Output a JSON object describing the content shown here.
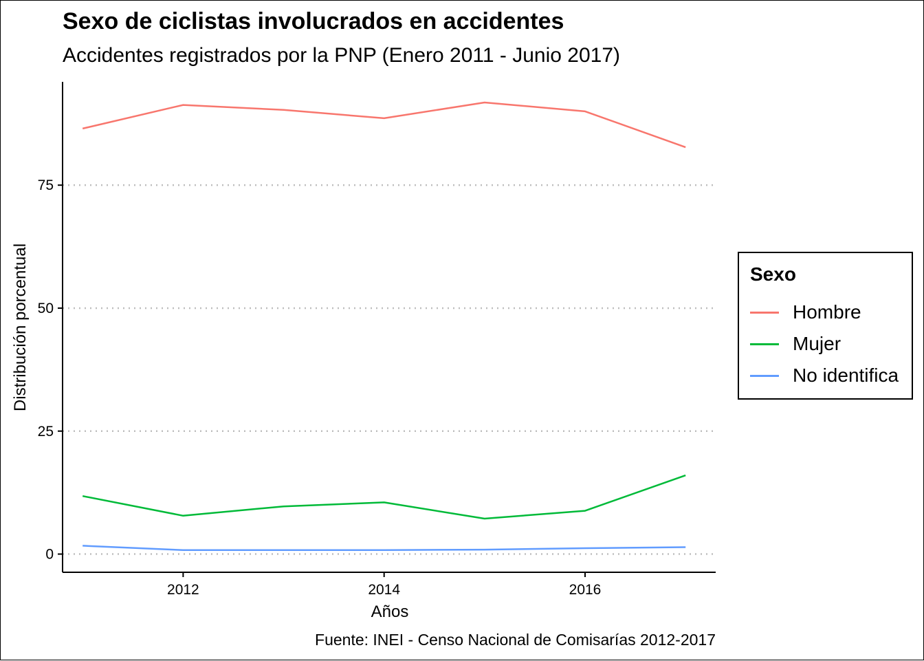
{
  "chart_data": {
    "type": "line",
    "title": "Sexo de ciclistas involucrados en accidentes",
    "subtitle": "Accidentes registrados por la PNP (Enero 2011 - Junio 2017)",
    "xlabel": "Años",
    "ylabel": "Distribución porcentual",
    "caption": "Fuente: INEI - Censo Nacional de Comisarías 2012-2017",
    "x": [
      2011,
      2012,
      2013,
      2014,
      2015,
      2016,
      2017
    ],
    "xlim": [
      2010.8,
      2017.3
    ],
    "ylim": [
      -3.7,
      96
    ],
    "x_ticks": [
      2012,
      2014,
      2016
    ],
    "y_ticks": [
      0,
      25,
      50,
      75
    ],
    "grid": "horizontal dotted major lines",
    "legend": {
      "title": "Sexo",
      "position": "right"
    },
    "series": [
      {
        "name": "Hombre",
        "color": "#F8766D",
        "values": [
          86.5,
          91.3,
          90.3,
          88.6,
          91.8,
          90,
          82.7
        ]
      },
      {
        "name": "Mujer",
        "color": "#00BA38",
        "values": [
          11.8,
          7.8,
          9.7,
          10.5,
          7.2,
          8.8,
          16.0
        ]
      },
      {
        "name": "No identifica",
        "color": "#619CFF",
        "values": [
          1.7,
          0.8,
          0.8,
          0.8,
          0.9,
          1.2,
          1.4
        ]
      }
    ]
  }
}
